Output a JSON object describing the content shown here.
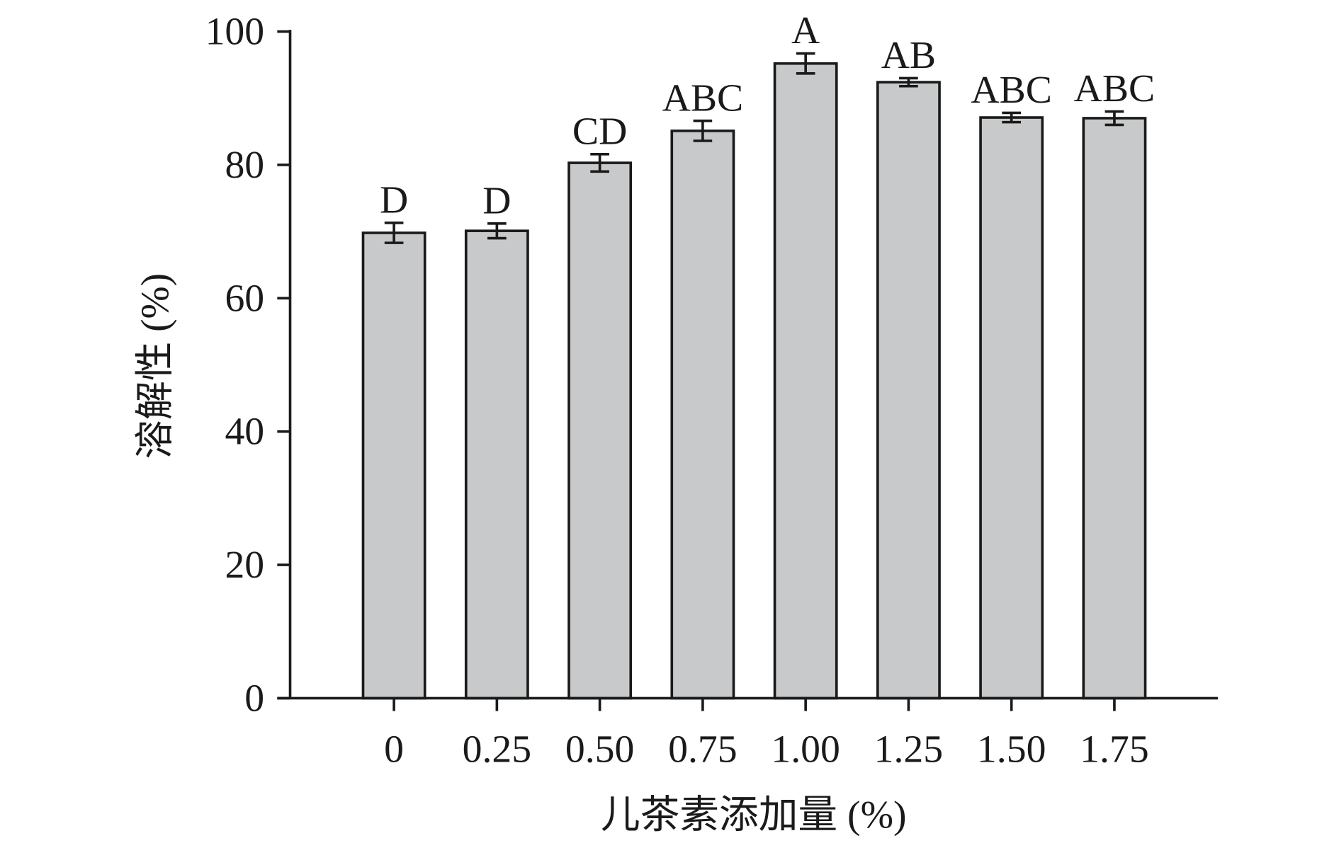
{
  "chart_data": {
    "type": "bar",
    "title": "",
    "xlabel": "儿茶素添加量 (%)",
    "ylabel": "溶解性 (%)",
    "categories": [
      "0",
      "0.25",
      "0.50",
      "0.75",
      "1.00",
      "1.25",
      "1.50",
      "1.75"
    ],
    "values": [
      69.8,
      70.1,
      80.3,
      85.1,
      95.2,
      92.4,
      87.1,
      87.0
    ],
    "errors": [
      1.5,
      1.1,
      1.3,
      1.5,
      1.5,
      0.6,
      0.7,
      1.0
    ],
    "significance": [
      "D",
      "D",
      "CD",
      "ABC",
      "A",
      "AB",
      "ABC",
      "ABC"
    ],
    "ylim": [
      0,
      100
    ],
    "yticks": [
      "0",
      "20",
      "40",
      "60",
      "80",
      "100"
    ],
    "grid": false,
    "bar_color": "#c8c9cb",
    "edge_color": "#1a1a1a"
  }
}
